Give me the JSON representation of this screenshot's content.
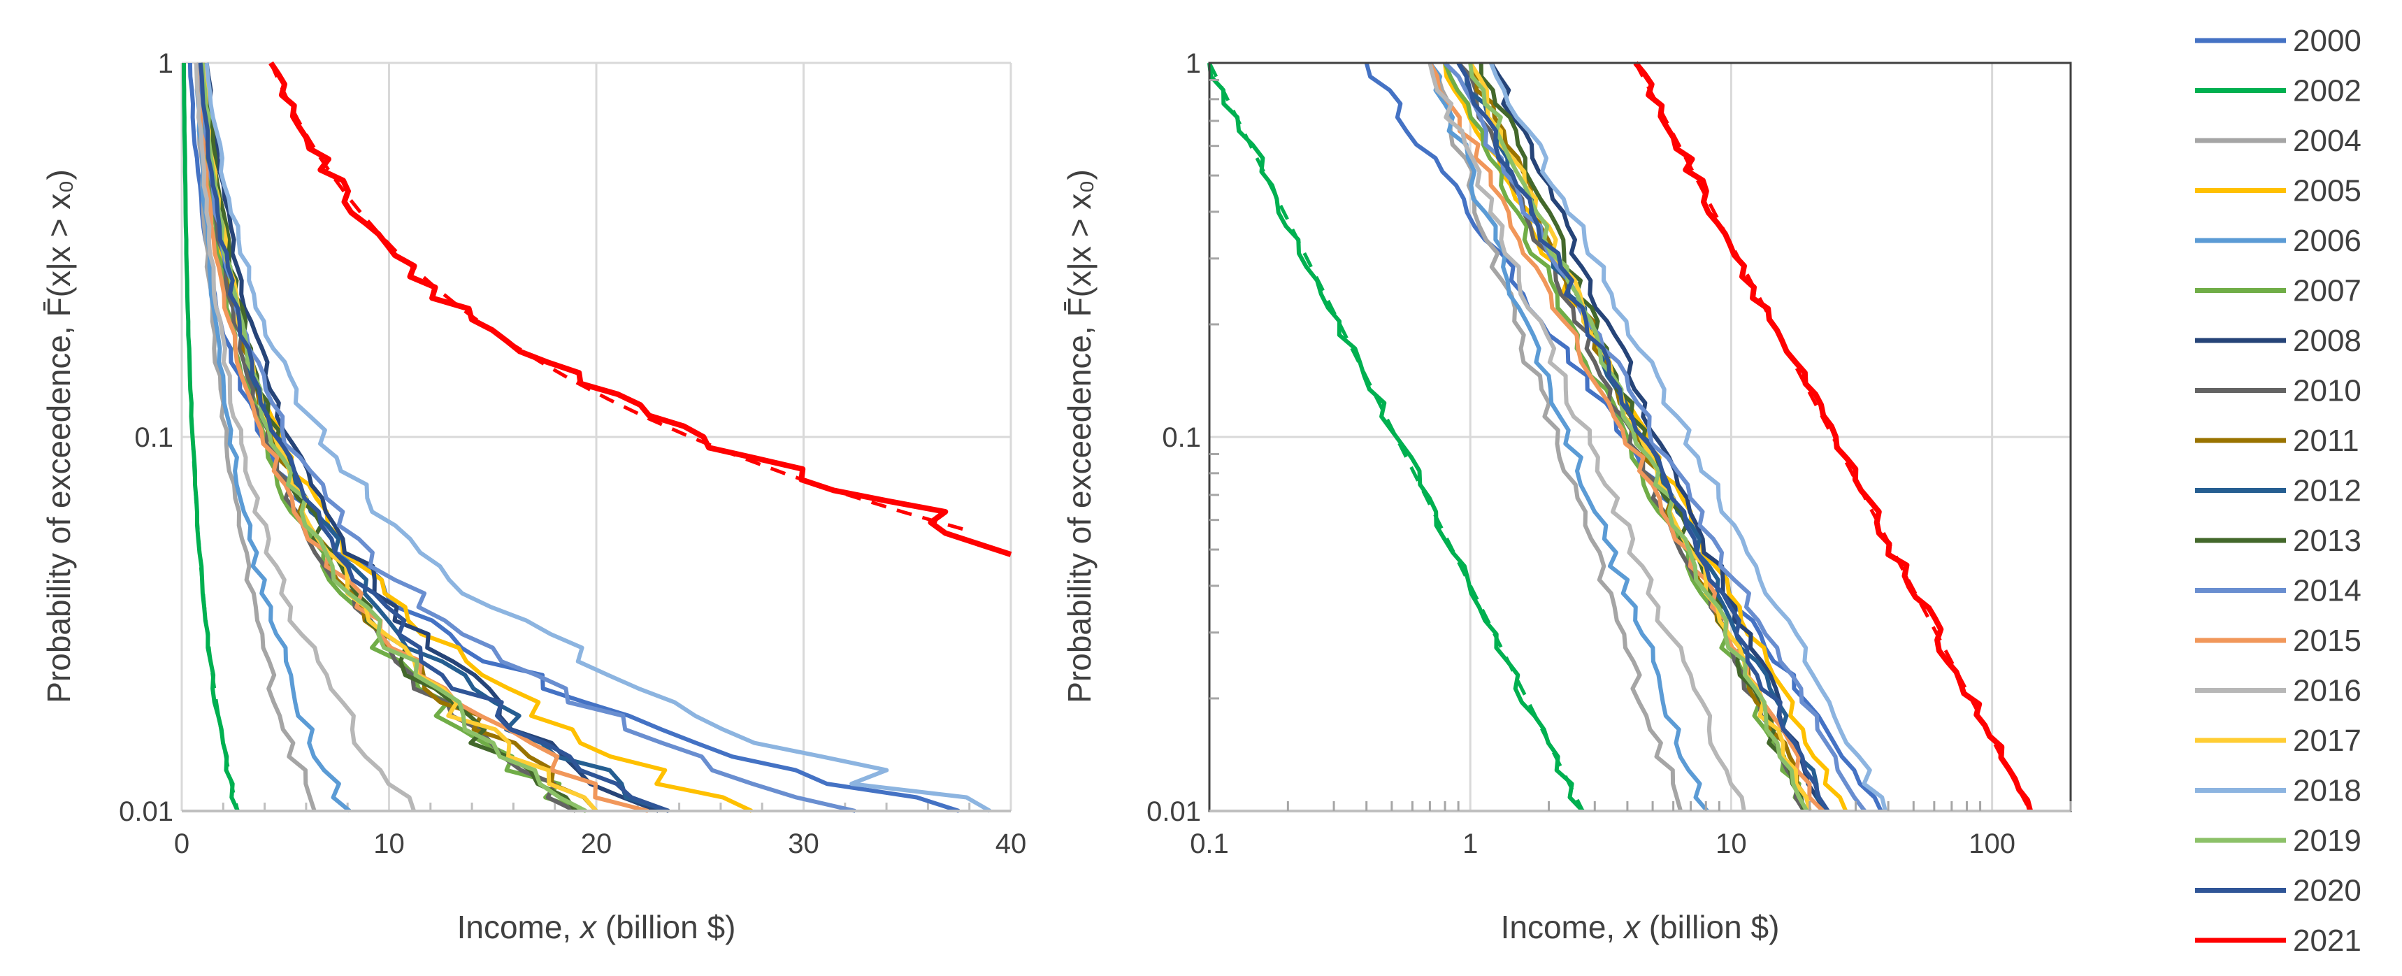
{
  "chart_data": [
    {
      "type": "line",
      "name": "left-panel",
      "x_scale": "linear",
      "y_scale": "log",
      "xlabel_prefix": "Income, ",
      "xlabel_var": "x",
      "xlabel_suffix": " (billion $)",
      "ylabel": "Probability of exceedence, F̄(x|x > x₀)",
      "xlim": [
        0,
        40
      ],
      "ylim": [
        0.01,
        1
      ],
      "x_ticks": [
        "0",
        "10",
        "20",
        "30",
        "40"
      ],
      "y_ticks": [
        "0.01",
        "0.1",
        "1"
      ],
      "grid": true
    },
    {
      "type": "line",
      "name": "right-panel",
      "x_scale": "log",
      "y_scale": "log",
      "xlabel_prefix": "Income, ",
      "xlabel_var": "x",
      "xlabel_suffix": " (billion $)",
      "ylabel": "Probability of exceedence, F̄(x|x > x₀)",
      "xlim": [
        0.1,
        200
      ],
      "ylim": [
        0.01,
        1
      ],
      "x_ticks": [
        "0.1",
        "1",
        "10",
        "100"
      ],
      "y_ticks": [
        "0.01",
        "0.1",
        "1"
      ],
      "grid": true
    }
  ],
  "series": [
    {
      "name": "2000",
      "color": "#4472C4",
      "x0": 0.4,
      "xmax": 37.5
    },
    {
      "name": "2002",
      "color": "#00B050",
      "x0": 0.1,
      "xmax": 2.7
    },
    {
      "name": "2004",
      "color": "#A5A5A5",
      "x0": 0.7,
      "xmax": 6.4
    },
    {
      "name": "2005",
      "color": "#FFC000",
      "x0": 0.8,
      "xmax": 27.5
    },
    {
      "name": "2006",
      "color": "#5B9BD5",
      "x0": 0.7,
      "xmax": 8.1
    },
    {
      "name": "2007",
      "color": "#70AD47",
      "x0": 0.8,
      "xmax": 19.5
    },
    {
      "name": "2008",
      "color": "#264478",
      "x0": 1.2,
      "xmax": 23.0
    },
    {
      "name": "2010",
      "color": "#636363",
      "x0": 0.9,
      "xmax": 19.0
    },
    {
      "name": "2011",
      "color": "#997300",
      "x0": 1.0,
      "xmax": 20.0
    },
    {
      "name": "2012",
      "color": "#255E91",
      "x0": 0.9,
      "xmax": 23.5
    },
    {
      "name": "2013",
      "color": "#43682B",
      "x0": 1.1,
      "xmax": 19.0
    },
    {
      "name": "2014",
      "color": "#698ED0",
      "x0": 0.8,
      "xmax": 32.5
    },
    {
      "name": "2015",
      "color": "#F1975A",
      "x0": 0.7,
      "xmax": 22.5
    },
    {
      "name": "2016",
      "color": "#B7B7B7",
      "x0": 0.7,
      "xmax": 11.2
    },
    {
      "name": "2017",
      "color": "#FFCD33",
      "x0": 1.0,
      "xmax": 20.0
    },
    {
      "name": "2018",
      "color": "#8CB4E0",
      "x0": 1.2,
      "xmax": 39.0
    },
    {
      "name": "2019",
      "color": "#8CC168",
      "x0": 1.0,
      "xmax": 19.5
    },
    {
      "name": "2020",
      "color": "#2F5597",
      "x0": 0.9,
      "xmax": 23.5
    },
    {
      "name": "2021",
      "color": "#FF0000",
      "x0": 4.3,
      "xmax": 140.0
    }
  ]
}
